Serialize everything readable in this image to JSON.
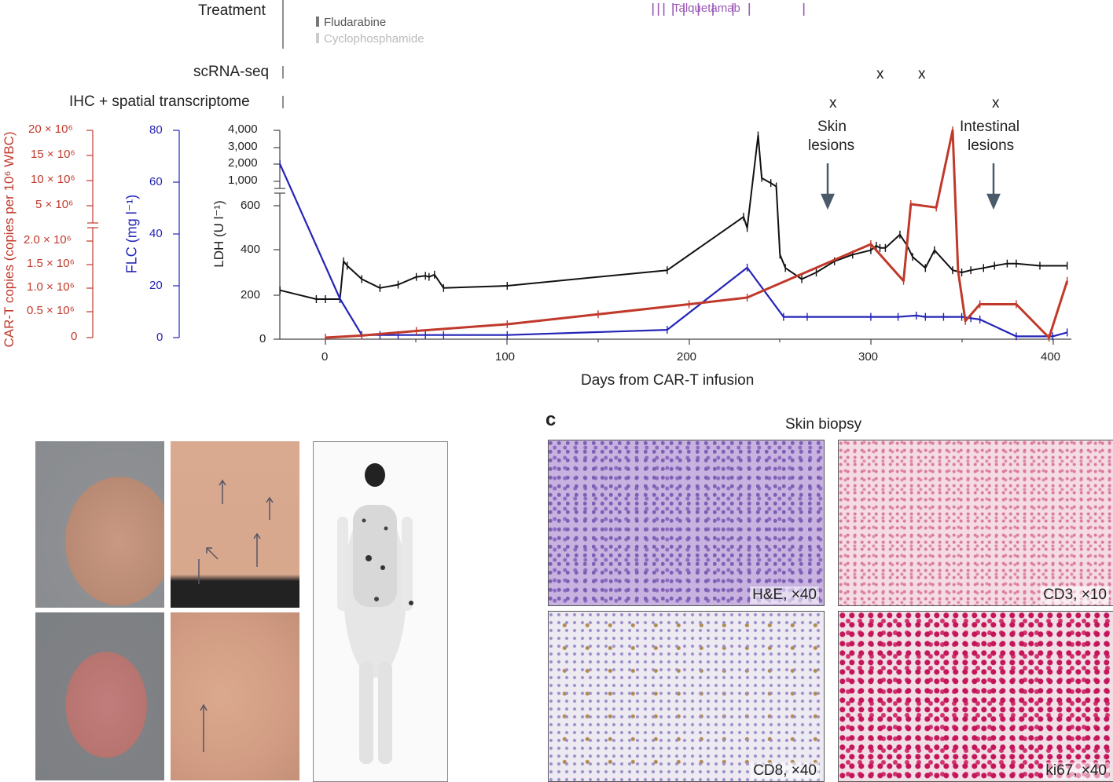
{
  "timeline": {
    "treatment_label": "Treatment",
    "legend_fludarabine": "Fludarabine",
    "legend_cyclophosphamide": "Cyclophosphamide",
    "talquetamab_label": "Talquetamab",
    "scrna_label": "scRNA-seq",
    "ihc_label": "IHC + spatial transcriptome",
    "marker": "x",
    "skin_annotation_line1": "Skin",
    "skin_annotation_line2": "lesions",
    "intestinal_annotation_line1": "Intestinal",
    "intestinal_annotation_line2": "lesions"
  },
  "colors": {
    "cart": "#c0392b",
    "flc": "#2424b8",
    "ldh": "#111111",
    "talquetamab": "#9b59b6",
    "arrow": "#4a5a68"
  },
  "chart_data": {
    "type": "line",
    "xlabel": "Days from CAR-T infusion",
    "x_ticks": [
      "0",
      "100",
      "200",
      "300",
      "400"
    ],
    "xlim": [
      -25,
      410
    ],
    "cart_axis": {
      "label": "CAR-T copies (copies per 10⁶ WBC)",
      "upper_ticks": [
        "20 × 10⁶",
        "15 × 10⁶",
        "10 × 10⁶",
        "5 × 10⁶"
      ],
      "lower_ticks": [
        "2.0 × 10⁶",
        "1.5 × 10⁶",
        "1.0 × 10⁶",
        "0.5 × 10⁶",
        "0"
      ]
    },
    "flc_axis": {
      "label": "FLC (mg l⁻¹)",
      "ticks": [
        "80",
        "60",
        "40",
        "20",
        "0"
      ],
      "ylim": [
        0,
        80
      ]
    },
    "ldh_axis": {
      "label": "LDH (U l⁻¹)",
      "upper_ticks": [
        "4,000",
        "3,000",
        "2,000",
        "1,000"
      ],
      "lower_ticks": [
        "600",
        "400",
        "200",
        "0"
      ]
    },
    "series": [
      {
        "name": "LDH",
        "unit": "U l⁻¹",
        "x": [
          -25,
          -5,
          0,
          8,
          10,
          12,
          20,
          30,
          40,
          50,
          55,
          57,
          60,
          65,
          100,
          188,
          230,
          232,
          238,
          240,
          245,
          248,
          250,
          253,
          262,
          270,
          280,
          290,
          300,
          303,
          305,
          308,
          316,
          320,
          323,
          330,
          335,
          345,
          350,
          355,
          362,
          368,
          375,
          380,
          393,
          408
        ],
        "y": [
          220,
          180,
          180,
          180,
          350,
          330,
          270,
          230,
          245,
          280,
          285,
          280,
          290,
          230,
          240,
          310,
          550,
          500,
          3700,
          1200,
          900,
          700,
          380,
          320,
          270,
          300,
          350,
          380,
          400,
          420,
          410,
          410,
          470,
          420,
          370,
          320,
          400,
          310,
          300,
          310,
          320,
          330,
          340,
          340,
          330,
          330
        ]
      },
      {
        "name": "FLC",
        "unit": "mg l⁻¹",
        "x": [
          -25,
          8,
          20,
          30,
          40,
          55,
          65,
          100,
          188,
          232,
          252,
          265,
          300,
          315,
          325,
          330,
          340,
          350,
          355,
          360,
          380,
          400,
          408
        ],
        "y": [
          67,
          15,
          1,
          1,
          1,
          1,
          1,
          1,
          3,
          27,
          8,
          8,
          8,
          8,
          8.5,
          8,
          8,
          8,
          7.5,
          7,
          0.5,
          0.5,
          2
        ]
      },
      {
        "name": "CAR-T copies",
        "unit": "copies per 10⁶ WBC",
        "x": [
          0,
          20,
          50,
          100,
          150,
          200,
          232,
          300,
          318,
          322,
          336,
          345,
          348,
          352,
          360,
          380,
          398,
          408
        ],
        "y": [
          0,
          0.03,
          0.1,
          0.2,
          0.35,
          0.5,
          0.6,
          1.4,
          0.85,
          2.0,
          5.0,
          20.0,
          1.0,
          0.25,
          0.5,
          0.5,
          0.0,
          0.85
        ]
      }
    ],
    "treatment_marks": {
      "talquetamab_days": [
        245,
        248,
        251,
        256,
        262,
        270,
        278,
        289,
        298,
        328
      ]
    },
    "sample_marks": {
      "scrna_seq_days": [
        305,
        328
      ],
      "ihc_spatial_days": [
        277,
        365
      ]
    }
  },
  "panel_c": {
    "letter": "c",
    "title": "Skin biopsy",
    "images": [
      {
        "label": "H&E, ×40"
      },
      {
        "label": "CD3, ×10"
      },
      {
        "label": "CD8, ×40"
      },
      {
        "label": "ki67, ×40"
      }
    ]
  }
}
